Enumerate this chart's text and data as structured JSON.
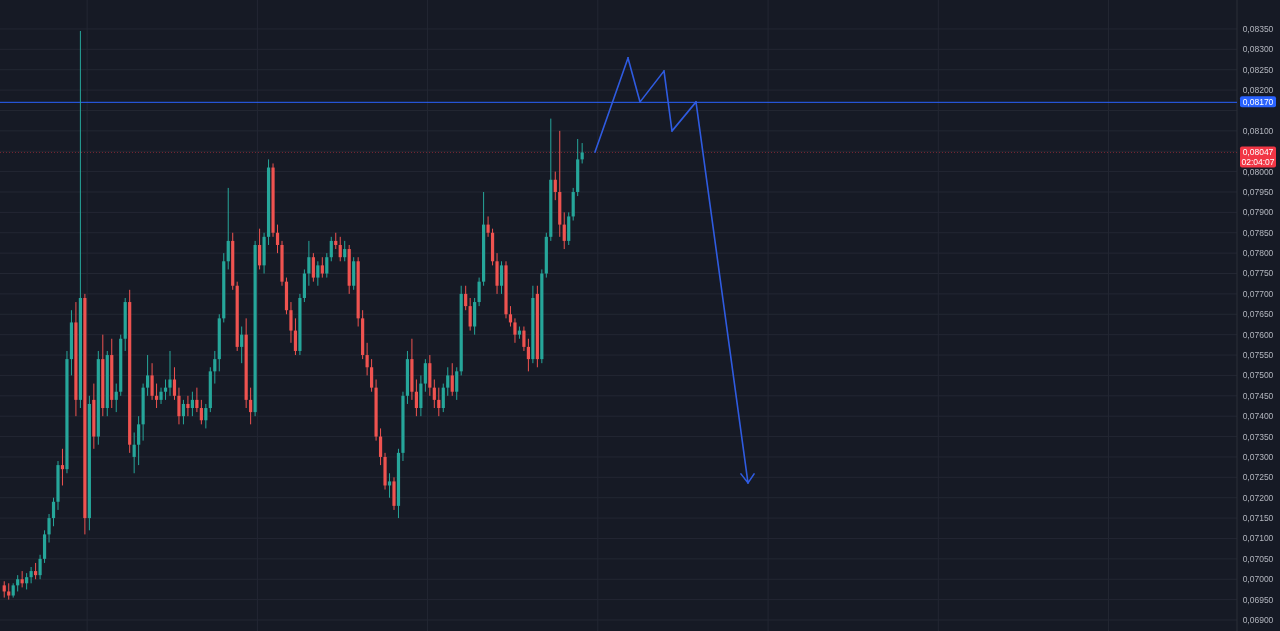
{
  "chart_data": {
    "type": "candlestick",
    "categories": [
      null,
      null,
      null,
      null,
      null,
      null,
      null,
      null,
      null,
      null,
      null,
      null,
      null,
      null,
      null,
      null,
      null,
      null,
      null,
      null,
      null,
      null,
      null,
      null,
      null,
      null,
      null,
      null,
      null,
      null,
      null,
      null,
      null,
      null,
      null,
      null,
      null,
      null,
      null,
      null,
      null,
      null,
      null,
      null,
      null,
      null,
      null,
      null,
      null,
      null,
      null,
      null,
      null,
      null,
      null,
      null,
      null,
      null,
      null,
      null,
      null,
      null,
      null,
      null,
      null,
      null,
      null,
      null,
      null,
      null,
      null,
      null,
      null,
      null,
      null,
      null,
      null,
      null,
      null,
      null,
      null,
      null,
      null,
      null,
      null,
      null,
      null,
      null,
      null,
      null,
      null,
      null,
      null,
      null,
      null,
      null,
      null,
      null,
      null,
      null,
      null,
      null,
      null,
      null,
      null,
      null,
      null,
      null,
      null,
      null,
      null,
      null,
      null,
      null,
      null,
      null,
      null,
      null,
      null,
      null,
      null,
      null,
      null,
      null,
      null,
      null,
      null,
      null,
      null,
      null,
      null,
      null,
      null,
      null,
      null,
      null,
      null,
      null,
      null,
      null,
      null,
      null,
      null,
      null,
      null,
      null,
      null,
      null,
      null,
      null,
      null,
      null,
      null,
      null,
      null,
      null,
      null,
      null,
      null,
      null,
      null,
      null,
      null,
      null,
      null,
      null,
      null,
      null,
      null,
      null,
      null,
      null,
      null,
      null,
      null,
      null,
      null,
      null,
      null,
      null,
      null,
      null,
      null,
      null,
      null,
      null,
      null,
      null,
      null,
      null,
      null,
      null,
      null,
      null,
      null,
      null,
      null,
      null,
      null,
      null,
      null,
      null,
      null,
      null,
      null,
      null,
      null,
      null,
      null,
      null,
      null,
      null,
      null,
      null,
      null,
      null,
      null,
      null,
      null,
      null,
      null,
      null,
      null,
      null,
      null,
      null,
      null,
      null,
      null,
      null,
      null,
      null,
      null,
      null,
      null,
      null,
      null,
      null,
      null,
      null,
      null,
      null,
      null,
      null,
      null,
      null,
      null,
      null,
      null,
      null,
      null,
      null,
      null,
      null,
      null,
      null,
      null,
      null,
      null,
      null,
      null,
      null,
      null,
      null,
      null,
      null,
      null,
      null,
      null,
      null,
      null,
      null,
      null,
      null,
      null
    ],
    "ohlc": [
      [
        0.06985,
        0.06995,
        0.06955,
        0.0697
      ],
      [
        0.0697,
        0.0699,
        0.0695,
        0.0696
      ],
      [
        0.0696,
        0.0699,
        0.06955,
        0.06985
      ],
      [
        0.06985,
        0.0701,
        0.0697,
        0.07
      ],
      [
        0.07,
        0.0702,
        0.0698,
        0.0699
      ],
      [
        0.0699,
        0.07015,
        0.06975,
        0.07005
      ],
      [
        0.07005,
        0.0703,
        0.0699,
        0.0702
      ],
      [
        0.0702,
        0.0704,
        0.07,
        0.0701
      ],
      [
        0.0701,
        0.0706,
        0.07,
        0.0705
      ],
      [
        0.0705,
        0.0712,
        0.0704,
        0.0711
      ],
      [
        0.0711,
        0.0716,
        0.0709,
        0.0715
      ],
      [
        0.0715,
        0.072,
        0.0713,
        0.0719
      ],
      [
        0.0719,
        0.0729,
        0.0717,
        0.0728
      ],
      [
        0.0728,
        0.0732,
        0.0723,
        0.0727
      ],
      [
        0.0727,
        0.0756,
        0.0726,
        0.0754
      ],
      [
        0.0754,
        0.0766,
        0.075,
        0.0763
      ],
      [
        0.0763,
        0.0768,
        0.074,
        0.0744
      ],
      [
        0.0744,
        0.08345,
        0.0742,
        0.0769
      ],
      [
        0.0769,
        0.077,
        0.0711,
        0.0715
      ],
      [
        0.0715,
        0.0745,
        0.0712,
        0.0743
      ],
      [
        0.0744,
        0.0748,
        0.0732,
        0.0735
      ],
      [
        0.0735,
        0.0756,
        0.0733,
        0.0754
      ],
      [
        0.0754,
        0.076,
        0.074,
        0.0742
      ],
      [
        0.0742,
        0.0756,
        0.074,
        0.0755
      ],
      [
        0.0755,
        0.0759,
        0.0742,
        0.0744
      ],
      [
        0.0744,
        0.0748,
        0.0741,
        0.0746
      ],
      [
        0.0746,
        0.076,
        0.0745,
        0.0759
      ],
      [
        0.0759,
        0.0769,
        0.0756,
        0.0768
      ],
      [
        0.0768,
        0.0771,
        0.0731,
        0.0733
      ],
      [
        0.073,
        0.0736,
        0.0726,
        0.0733
      ],
      [
        0.0733,
        0.074,
        0.0728,
        0.0738
      ],
      [
        0.0738,
        0.0748,
        0.0734,
        0.0747
      ],
      [
        0.0747,
        0.0755,
        0.0745,
        0.075
      ],
      [
        0.075,
        0.0753,
        0.0744,
        0.0745
      ],
      [
        0.0745,
        0.0748,
        0.0742,
        0.0744
      ],
      [
        0.0744,
        0.0747,
        0.0743,
        0.0746
      ],
      [
        0.0746,
        0.0749,
        0.0744,
        0.0747
      ],
      [
        0.0747,
        0.0756,
        0.0745,
        0.0749
      ],
      [
        0.0749,
        0.0752,
        0.0744,
        0.0745
      ],
      [
        0.0745,
        0.0747,
        0.0738,
        0.074
      ],
      [
        0.074,
        0.0744,
        0.0738,
        0.0743
      ],
      [
        0.0743,
        0.0745,
        0.074,
        0.0742
      ],
      [
        0.0742,
        0.0746,
        0.074,
        0.0744
      ],
      [
        0.0744,
        0.0747,
        0.0741,
        0.0742
      ],
      [
        0.0742,
        0.0744,
        0.0738,
        0.0739
      ],
      [
        0.0739,
        0.0743,
        0.0737,
        0.0742
      ],
      [
        0.0742,
        0.0752,
        0.0741,
        0.0751
      ],
      [
        0.0751,
        0.0756,
        0.0748,
        0.0754
      ],
      [
        0.0754,
        0.0765,
        0.0751,
        0.0764
      ],
      [
        0.0764,
        0.078,
        0.0763,
        0.0778
      ],
      [
        0.0778,
        0.0796,
        0.0776,
        0.0783
      ],
      [
        0.0783,
        0.0785,
        0.0771,
        0.0772
      ],
      [
        0.0772,
        0.0773,
        0.0756,
        0.0757
      ],
      [
        0.0757,
        0.0762,
        0.0753,
        0.076
      ],
      [
        0.076,
        0.0764,
        0.0742,
        0.0744
      ],
      [
        0.0744,
        0.0747,
        0.0738,
        0.0741
      ],
      [
        0.0741,
        0.0783,
        0.074,
        0.0782
      ],
      [
        0.0782,
        0.0786,
        0.0776,
        0.0777
      ],
      [
        0.0777,
        0.0785,
        0.0775,
        0.0784
      ],
      [
        0.0784,
        0.0803,
        0.0782,
        0.0801
      ],
      [
        0.0801,
        0.0802,
        0.0784,
        0.0785
      ],
      [
        0.0785,
        0.0787,
        0.078,
        0.0782
      ],
      [
        0.0782,
        0.0783,
        0.0772,
        0.0773
      ],
      [
        0.0773,
        0.0774,
        0.0765,
        0.0766
      ],
      [
        0.0766,
        0.0768,
        0.0758,
        0.0761
      ],
      [
        0.0761,
        0.0764,
        0.0755,
        0.0756
      ],
      [
        0.0756,
        0.077,
        0.0755,
        0.0769
      ],
      [
        0.0769,
        0.0776,
        0.0768,
        0.0775
      ],
      [
        0.0775,
        0.0783,
        0.0772,
        0.0779
      ],
      [
        0.0779,
        0.078,
        0.0773,
        0.0774
      ],
      [
        0.0774,
        0.0778,
        0.0772,
        0.0777
      ],
      [
        0.0777,
        0.0779,
        0.0774,
        0.0775
      ],
      [
        0.0775,
        0.078,
        0.0774,
        0.0779
      ],
      [
        0.0779,
        0.0784,
        0.0778,
        0.0783
      ],
      [
        0.0783,
        0.0785,
        0.0781,
        0.0782
      ],
      [
        0.0782,
        0.0784,
        0.0778,
        0.0779
      ],
      [
        0.0779,
        0.0783,
        0.0778,
        0.0781
      ],
      [
        0.0781,
        0.0782,
        0.077,
        0.0772
      ],
      [
        0.0772,
        0.0779,
        0.0771,
        0.0778
      ],
      [
        0.0778,
        0.0779,
        0.0762,
        0.0764
      ],
      [
        0.0764,
        0.0766,
        0.0754,
        0.0755
      ],
      [
        0.0755,
        0.0758,
        0.075,
        0.0752
      ],
      [
        0.0752,
        0.0754,
        0.0746,
        0.0747
      ],
      [
        0.0747,
        0.0749,
        0.0734,
        0.0735
      ],
      [
        0.0735,
        0.0737,
        0.0728,
        0.073
      ],
      [
        0.073,
        0.0731,
        0.0722,
        0.0723
      ],
      [
        0.0723,
        0.0726,
        0.072,
        0.0724
      ],
      [
        0.0724,
        0.0725,
        0.0717,
        0.0718
      ],
      [
        0.0718,
        0.0732,
        0.0715,
        0.0731
      ],
      [
        0.0731,
        0.0746,
        0.0729,
        0.0745
      ],
      [
        0.0745,
        0.0756,
        0.0743,
        0.0754
      ],
      [
        0.0754,
        0.0759,
        0.0744,
        0.0746
      ],
      [
        0.0746,
        0.0749,
        0.074,
        0.0742
      ],
      [
        0.0742,
        0.075,
        0.074,
        0.0748
      ],
      [
        0.0748,
        0.0754,
        0.0746,
        0.0753
      ],
      [
        0.0753,
        0.0755,
        0.0745,
        0.0747
      ],
      [
        0.0747,
        0.0749,
        0.0742,
        0.0744
      ],
      [
        0.0744,
        0.0747,
        0.074,
        0.0742
      ],
      [
        0.0742,
        0.0748,
        0.0741,
        0.0747
      ],
      [
        0.0747,
        0.0752,
        0.0745,
        0.075
      ],
      [
        0.075,
        0.0753,
        0.0745,
        0.0746
      ],
      [
        0.0746,
        0.0752,
        0.0744,
        0.0751
      ],
      [
        0.0751,
        0.0772,
        0.075,
        0.077
      ],
      [
        0.077,
        0.0772,
        0.0766,
        0.0767
      ],
      [
        0.0767,
        0.0769,
        0.0761,
        0.0762
      ],
      [
        0.0762,
        0.0769,
        0.076,
        0.0768
      ],
      [
        0.0768,
        0.0774,
        0.0767,
        0.0773
      ],
      [
        0.0773,
        0.0795,
        0.0772,
        0.0787
      ],
      [
        0.0787,
        0.0789,
        0.0784,
        0.0785
      ],
      [
        0.0785,
        0.0786,
        0.0777,
        0.0778
      ],
      [
        0.0778,
        0.078,
        0.077,
        0.0772
      ],
      [
        0.0772,
        0.0778,
        0.077,
        0.0777
      ],
      [
        0.0777,
        0.0778,
        0.0764,
        0.0765
      ],
      [
        0.0765,
        0.0767,
        0.0762,
        0.0763
      ],
      [
        0.0763,
        0.0764,
        0.0758,
        0.076
      ],
      [
        0.076,
        0.0762,
        0.0759,
        0.0761
      ],
      [
        0.0761,
        0.0762,
        0.0756,
        0.0757
      ],
      [
        0.0757,
        0.0759,
        0.0751,
        0.0754
      ],
      [
        0.0754,
        0.0772,
        0.0753,
        0.0769
      ],
      [
        0.077,
        0.0772,
        0.0752,
        0.0754
      ],
      [
        0.0754,
        0.0776,
        0.0753,
        0.0775
      ],
      [
        0.0775,
        0.0785,
        0.0774,
        0.0784
      ],
      [
        0.0784,
        0.0813,
        0.0783,
        0.0798
      ],
      [
        0.0798,
        0.08,
        0.0793,
        0.0795
      ],
      [
        0.0795,
        0.081,
        0.0784,
        0.0787
      ],
      [
        0.0787,
        0.079,
        0.0781,
        0.0783
      ],
      [
        0.0783,
        0.079,
        0.0782,
        0.0789
      ],
      [
        0.0789,
        0.0796,
        0.0788,
        0.0795
      ],
      [
        0.0795,
        0.0808,
        0.0794,
        0.0803
      ],
      [
        0.0803,
        0.0807,
        0.0802,
        0.08047
      ],
      null,
      null,
      null,
      null,
      null,
      null,
      null,
      null,
      null,
      null,
      null,
      null,
      null,
      null,
      null,
      null,
      null,
      null,
      null,
      null,
      null,
      null,
      null,
      null,
      null,
      null,
      null,
      null,
      null,
      null,
      null,
      null,
      null,
      null,
      null,
      null,
      null,
      null,
      null,
      null,
      null,
      null,
      null,
      null,
      null,
      null,
      null,
      null,
      null,
      null,
      null,
      null,
      null,
      null,
      null,
      null,
      null,
      null,
      null,
      null,
      null,
      null,
      null,
      null,
      null,
      null,
      null,
      null,
      null,
      null,
      null,
      null,
      null,
      null,
      null,
      null,
      null,
      null,
      null,
      null,
      null,
      null,
      null,
      null,
      null,
      null,
      null,
      null,
      null,
      null,
      null,
      null,
      null,
      null,
      null,
      null,
      null,
      null,
      null,
      null,
      null,
      null,
      null,
      null,
      null,
      null,
      null,
      null,
      null,
      null,
      null,
      null,
      null,
      null,
      null,
      null,
      null,
      null,
      null,
      null,
      null,
      null,
      null,
      null,
      null,
      null,
      null,
      null,
      null,
      null,
      null,
      null,
      null,
      null,
      null,
      null,
      null,
      null,
      null,
      null,
      null,
      null,
      null,
      null,
      null
    ],
    "ylim": [
      0.06873,
      0.08421
    ],
    "yticks": [
      {
        "value": 0.069,
        "label": "0,06900"
      },
      {
        "value": 0.0695,
        "label": "0,06950"
      },
      {
        "value": 0.07,
        "label": "0,07000"
      },
      {
        "value": 0.0705,
        "label": "0,07050"
      },
      {
        "value": 0.071,
        "label": "0,07100"
      },
      {
        "value": 0.0715,
        "label": "0,07150"
      },
      {
        "value": 0.072,
        "label": "0,07200"
      },
      {
        "value": 0.0725,
        "label": "0,07250"
      },
      {
        "value": 0.073,
        "label": "0,07300"
      },
      {
        "value": 0.0735,
        "label": "0,07350"
      },
      {
        "value": 0.074,
        "label": "0,07400"
      },
      {
        "value": 0.0745,
        "label": "0,07450"
      },
      {
        "value": 0.075,
        "label": "0,07500"
      },
      {
        "value": 0.0755,
        "label": "0,07550"
      },
      {
        "value": 0.076,
        "label": "0,07600"
      },
      {
        "value": 0.0765,
        "label": "0,07650"
      },
      {
        "value": 0.077,
        "label": "0,07700"
      },
      {
        "value": 0.0775,
        "label": "0,07750"
      },
      {
        "value": 0.078,
        "label": "0,07800"
      },
      {
        "value": 0.0785,
        "label": "0,07850"
      },
      {
        "value": 0.079,
        "label": "0,07900"
      },
      {
        "value": 0.0795,
        "label": "0,07950"
      },
      {
        "value": 0.08,
        "label": "0,08000"
      },
      {
        "value": 0.0805,
        "label": null
      },
      {
        "value": 0.081,
        "label": "0,08100"
      },
      {
        "value": 0.0815,
        "label": null
      },
      {
        "value": 0.082,
        "label": "0,08200"
      },
      {
        "value": 0.0825,
        "label": "0,08250"
      },
      {
        "value": 0.083,
        "label": "0,08300"
      },
      {
        "value": 0.0835,
        "label": "0,08350"
      }
    ],
    "ref_lines": [
      {
        "axis": "y",
        "value": 0.0817,
        "label": "0,08170",
        "color": "#2962ff",
        "line_style": "solid"
      },
      {
        "axis": "y",
        "value": 0.08047,
        "label": "0,08047",
        "color": "#f23645",
        "line_style": "dotted"
      }
    ],
    "annotations": [
      "02:04:07"
    ],
    "grid": true
  }
}
